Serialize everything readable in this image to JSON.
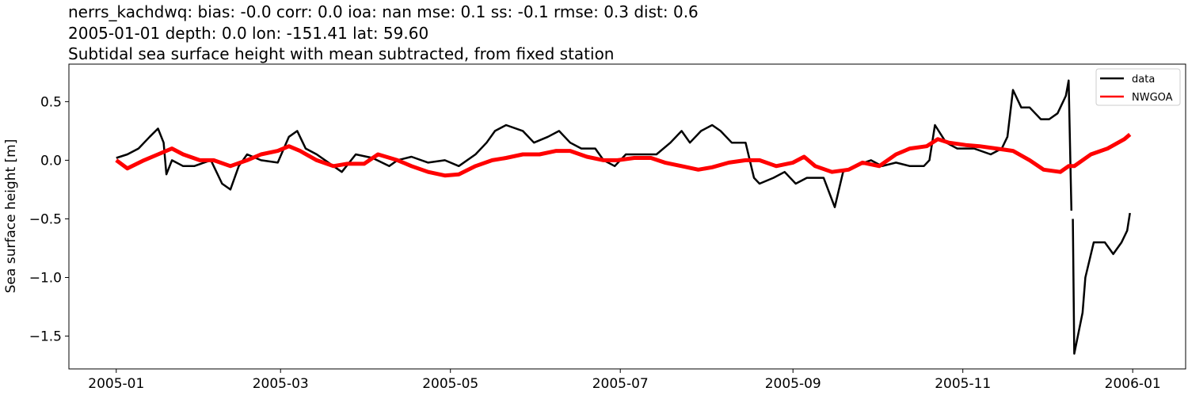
{
  "chart_data": {
    "type": "line",
    "title_lines": [
      "nerrs_kachdwq: bias: -0.0  corr: 0.0  ioa: nan  mse: 0.1  ss: -0.1  rmse: 0.3  dist: 0.6",
      "2005-01-01 depth: 0.0 lon: -151.41 lat: 59.60",
      "Subtidal sea surface height with mean subtracted, from fixed station"
    ],
    "xlabel": "",
    "ylabel": "Sea surface height [m]",
    "xlim": [
      "2004-12-15",
      "2006-01-20"
    ],
    "ylim": [
      -1.78,
      0.82
    ],
    "x_ticks": [
      "2005-01",
      "2005-03",
      "2005-05",
      "2005-07",
      "2005-09",
      "2005-11",
      "2006-01"
    ],
    "y_ticks": [
      0.5,
      0.0,
      -0.5,
      -1.0,
      -1.5
    ],
    "y_tick_labels": [
      "0.5",
      "0.0",
      "−0.5",
      "−1.0",
      "−1.5"
    ],
    "grid": false,
    "legend_placement": "top-right",
    "series": [
      {
        "name": "data",
        "color": "#000000",
        "points": [
          [
            "2005-01-01",
            0.02
          ],
          [
            "2005-01-05",
            0.05
          ],
          [
            "2005-01-09",
            0.1
          ],
          [
            "2005-01-13",
            0.2
          ],
          [
            "2005-01-16",
            0.27
          ],
          [
            "2005-01-18",
            0.15
          ],
          [
            "2005-01-19",
            -0.12
          ],
          [
            "2005-01-21",
            0.0
          ],
          [
            "2005-01-25",
            -0.05
          ],
          [
            "2005-01-29",
            -0.05
          ],
          [
            "2005-02-04",
            0.0
          ],
          [
            "2005-02-08",
            -0.2
          ],
          [
            "2005-02-11",
            -0.25
          ],
          [
            "2005-02-14",
            -0.05
          ],
          [
            "2005-02-17",
            0.05
          ],
          [
            "2005-02-22",
            0.0
          ],
          [
            "2005-02-28",
            -0.02
          ],
          [
            "2005-03-04",
            0.2
          ],
          [
            "2005-03-07",
            0.25
          ],
          [
            "2005-03-10",
            0.1
          ],
          [
            "2005-03-14",
            0.05
          ],
          [
            "2005-03-20",
            -0.05
          ],
          [
            "2005-03-23",
            -0.1
          ],
          [
            "2005-03-28",
            0.05
          ],
          [
            "2005-04-03",
            0.02
          ],
          [
            "2005-04-09",
            -0.05
          ],
          [
            "2005-04-12",
            0.0
          ],
          [
            "2005-04-17",
            0.03
          ],
          [
            "2005-04-23",
            -0.02
          ],
          [
            "2005-04-29",
            0.0
          ],
          [
            "2005-05-04",
            -0.05
          ],
          [
            "2005-05-10",
            0.05
          ],
          [
            "2005-05-14",
            0.15
          ],
          [
            "2005-05-17",
            0.25
          ],
          [
            "2005-05-21",
            0.3
          ],
          [
            "2005-05-27",
            0.25
          ],
          [
            "2005-05-31",
            0.15
          ],
          [
            "2005-06-05",
            0.2
          ],
          [
            "2005-06-09",
            0.25
          ],
          [
            "2005-06-13",
            0.15
          ],
          [
            "2005-06-17",
            0.1
          ],
          [
            "2005-06-22",
            0.1
          ],
          [
            "2005-06-25",
            0.0
          ],
          [
            "2005-06-29",
            -0.05
          ],
          [
            "2005-07-03",
            0.05
          ],
          [
            "2005-07-09",
            0.05
          ],
          [
            "2005-07-14",
            0.05
          ],
          [
            "2005-07-19",
            0.15
          ],
          [
            "2005-07-23",
            0.25
          ],
          [
            "2005-07-26",
            0.15
          ],
          [
            "2005-07-30",
            0.25
          ],
          [
            "2005-08-03",
            0.3
          ],
          [
            "2005-08-06",
            0.25
          ],
          [
            "2005-08-10",
            0.15
          ],
          [
            "2005-08-15",
            0.15
          ],
          [
            "2005-08-18",
            -0.15
          ],
          [
            "2005-08-20",
            -0.2
          ],
          [
            "2005-08-25",
            -0.15
          ],
          [
            "2005-08-29",
            -0.1
          ],
          [
            "2005-09-02",
            -0.2
          ],
          [
            "2005-09-06",
            -0.15
          ],
          [
            "2005-09-12",
            -0.15
          ],
          [
            "2005-09-16",
            -0.4
          ],
          [
            "2005-09-19",
            -0.1
          ],
          [
            "2005-09-23",
            -0.05
          ],
          [
            "2005-09-29",
            0.0
          ],
          [
            "2005-10-03",
            -0.05
          ],
          [
            "2005-10-08",
            -0.02
          ],
          [
            "2005-10-13",
            -0.05
          ],
          [
            "2005-10-18",
            -0.05
          ],
          [
            "2005-10-20",
            0.0
          ],
          [
            "2005-10-22",
            0.3
          ],
          [
            "2005-10-26",
            0.15
          ],
          [
            "2005-10-30",
            0.1
          ],
          [
            "2005-11-05",
            0.1
          ],
          [
            "2005-11-11",
            0.05
          ],
          [
            "2005-11-15",
            0.1
          ],
          [
            "2005-11-17",
            0.2
          ],
          [
            "2005-11-19",
            0.6
          ],
          [
            "2005-11-22",
            0.45
          ],
          [
            "2005-11-25",
            0.45
          ],
          [
            "2005-11-29",
            0.35
          ],
          [
            "2005-12-02",
            0.35
          ],
          [
            "2005-12-05",
            0.4
          ],
          [
            "2005-12-08",
            0.55
          ],
          [
            "2005-12-09",
            0.68
          ],
          [
            "2005-12-10T00:00",
            -0.43
          ],
          [
            "2005-12-10T06:00",
            null
          ],
          [
            "2005-12-10T12:00",
            -0.5
          ],
          [
            "2005-12-11",
            -1.65
          ],
          [
            "2005-12-14",
            -1.3
          ],
          [
            "2005-12-15",
            -1.0
          ],
          [
            "2005-12-18",
            -0.7
          ],
          [
            "2005-12-22",
            -0.7
          ],
          [
            "2005-12-25",
            -0.8
          ],
          [
            "2005-12-28",
            -0.7
          ],
          [
            "2005-12-30",
            -0.6
          ],
          [
            "2005-12-31",
            -0.45
          ]
        ]
      },
      {
        "name": "NWGOA",
        "color": "#ff0000",
        "points": [
          [
            "2005-01-01",
            0.0
          ],
          [
            "2005-01-05",
            -0.07
          ],
          [
            "2005-01-11",
            0.0
          ],
          [
            "2005-01-16",
            0.05
          ],
          [
            "2005-01-21",
            0.1
          ],
          [
            "2005-01-25",
            0.05
          ],
          [
            "2005-01-31",
            0.0
          ],
          [
            "2005-02-05",
            0.0
          ],
          [
            "2005-02-11",
            -0.05
          ],
          [
            "2005-02-17",
            0.0
          ],
          [
            "2005-02-22",
            0.05
          ],
          [
            "2005-02-28",
            0.08
          ],
          [
            "2005-03-04",
            0.12
          ],
          [
            "2005-03-08",
            0.08
          ],
          [
            "2005-03-14",
            0.0
          ],
          [
            "2005-03-20",
            -0.05
          ],
          [
            "2005-03-25",
            -0.03
          ],
          [
            "2005-03-31",
            -0.03
          ],
          [
            "2005-04-05",
            0.05
          ],
          [
            "2005-04-12",
            0.0
          ],
          [
            "2005-04-17",
            -0.05
          ],
          [
            "2005-04-23",
            -0.1
          ],
          [
            "2005-04-29",
            -0.13
          ],
          [
            "2005-05-04",
            -0.12
          ],
          [
            "2005-05-10",
            -0.05
          ],
          [
            "2005-05-16",
            0.0
          ],
          [
            "2005-05-21",
            0.02
          ],
          [
            "2005-05-27",
            0.05
          ],
          [
            "2005-06-02",
            0.05
          ],
          [
            "2005-06-08",
            0.08
          ],
          [
            "2005-06-13",
            0.08
          ],
          [
            "2005-06-19",
            0.03
          ],
          [
            "2005-06-25",
            0.0
          ],
          [
            "2005-06-30",
            0.0
          ],
          [
            "2005-07-06",
            0.02
          ],
          [
            "2005-07-12",
            0.02
          ],
          [
            "2005-07-17",
            -0.02
          ],
          [
            "2005-07-23",
            -0.05
          ],
          [
            "2005-07-29",
            -0.08
          ],
          [
            "2005-08-03",
            -0.06
          ],
          [
            "2005-08-09",
            -0.02
          ],
          [
            "2005-08-15",
            0.0
          ],
          [
            "2005-08-20",
            0.0
          ],
          [
            "2005-08-26",
            -0.05
          ],
          [
            "2005-09-01",
            -0.02
          ],
          [
            "2005-09-05",
            0.03
          ],
          [
            "2005-09-09",
            -0.05
          ],
          [
            "2005-09-15",
            -0.1
          ],
          [
            "2005-09-21",
            -0.08
          ],
          [
            "2005-09-26",
            -0.02
          ],
          [
            "2005-10-02",
            -0.05
          ],
          [
            "2005-10-08",
            0.05
          ],
          [
            "2005-10-13",
            0.1
          ],
          [
            "2005-10-19",
            0.12
          ],
          [
            "2005-10-23",
            0.18
          ],
          [
            "2005-10-27",
            0.15
          ],
          [
            "2005-11-02",
            0.13
          ],
          [
            "2005-11-07",
            0.12
          ],
          [
            "2005-11-13",
            0.1
          ],
          [
            "2005-11-19",
            0.08
          ],
          [
            "2005-11-25",
            0.0
          ],
          [
            "2005-11-30",
            -0.08
          ],
          [
            "2005-12-06",
            -0.1
          ],
          [
            "2005-12-09",
            -0.05
          ],
          [
            "2005-12-11",
            -0.05
          ],
          [
            "2005-12-17",
            0.05
          ],
          [
            "2005-12-23",
            0.1
          ],
          [
            "2005-12-29",
            0.18
          ],
          [
            "2005-12-31",
            0.22
          ]
        ]
      }
    ]
  }
}
